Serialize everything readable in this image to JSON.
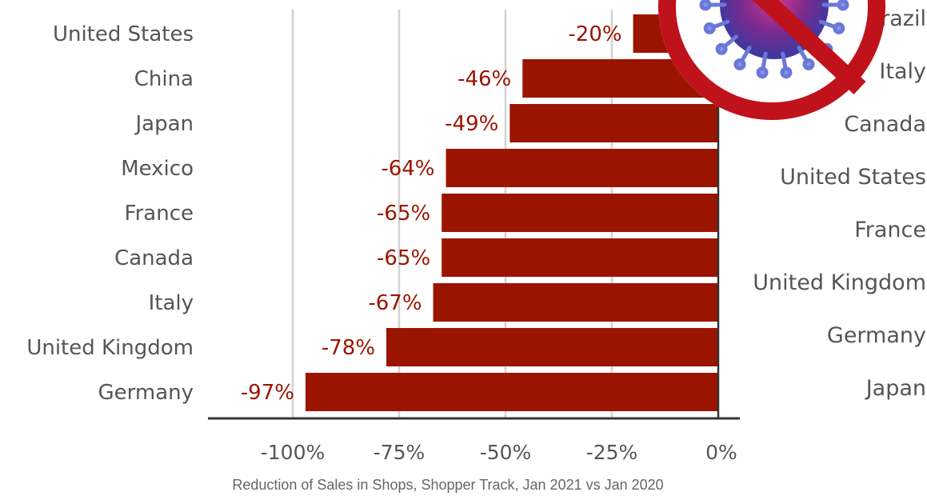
{
  "chart_data": {
    "type": "bar",
    "orientation": "horizontal",
    "categories": [
      "United States",
      "China",
      "Japan",
      "Mexico",
      "France",
      "Canada",
      "Italy",
      "United Kingdom",
      "Germany"
    ],
    "values": [
      -20,
      -46,
      -49,
      -64,
      -65,
      -65,
      -67,
      -78,
      -97
    ],
    "value_labels": [
      "-20%",
      "-46%",
      "-49%",
      "-64%",
      "-65%",
      "-65%",
      "-67%",
      "-78%",
      "-97%"
    ],
    "xlim": [
      -120,
      5
    ],
    "x_ticks": [
      -100,
      -75,
      -50,
      -25,
      0
    ],
    "x_tick_labels": [
      "-100%",
      "-75%",
      "-50%",
      "-25%",
      "0%"
    ],
    "grid": "vertical",
    "bar_color": "#9b1400",
    "right_labels": [
      "Brazil",
      "Italy",
      "Canada",
      "United States",
      "France",
      "United Kingdom",
      "Germany",
      "Japan"
    ],
    "caption": "Reduction of Sales in Shops, Shopper Track, Jan 2021 vs Jan 2020"
  },
  "decoration": {
    "icon": "no-virus-icon",
    "color": "#c0121a"
  }
}
